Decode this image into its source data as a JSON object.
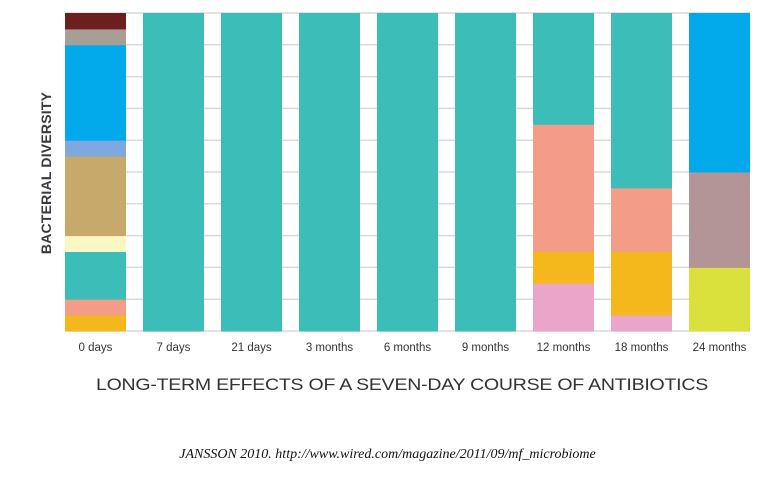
{
  "chart_data": {
    "type": "bar",
    "stacked": true,
    "title": "",
    "xlabel": "LONG-TERM EFFECTS OF A SEVEN-DAY COURSE OF ANTIBIOTICS",
    "ylabel": "BACTERIAL DIVERSITY",
    "ylim": [
      0,
      100
    ],
    "grid": true,
    "categories": [
      "0 days",
      "7 days",
      "21 days",
      "3 months",
      "6 months",
      "9 months",
      "12 months",
      "18 months",
      "24 months"
    ],
    "bars": [
      {
        "category": "0 days",
        "segments": [
          {
            "color": "#f4b81c",
            "value": 5
          },
          {
            "color": "#f39c88",
            "value": 5
          },
          {
            "color": "#3dbdb8",
            "value": 15
          },
          {
            "color": "#fbf7c4",
            "value": 5
          },
          {
            "color": "#c6a96b",
            "value": 25
          },
          {
            "color": "#7ea8e0",
            "value": 5
          },
          {
            "color": "#03aaeb",
            "value": 30
          },
          {
            "color": "#a89e95",
            "value": 5
          },
          {
            "color": "#6b1f1f",
            "value": 5
          }
        ]
      },
      {
        "category": "7 days",
        "segments": [
          {
            "color": "#3dbdb8",
            "value": 100
          }
        ]
      },
      {
        "category": "21 days",
        "segments": [
          {
            "color": "#3dbdb8",
            "value": 100
          }
        ]
      },
      {
        "category": "3 months",
        "segments": [
          {
            "color": "#3dbdb8",
            "value": 100
          }
        ]
      },
      {
        "category": "6 months",
        "segments": [
          {
            "color": "#3dbdb8",
            "value": 100
          }
        ]
      },
      {
        "category": "9 months",
        "segments": [
          {
            "color": "#3dbdb8",
            "value": 100
          }
        ]
      },
      {
        "category": "12 months",
        "segments": [
          {
            "color": "#eaa6c8",
            "value": 15
          },
          {
            "color": "#f4b81c",
            "value": 10
          },
          {
            "color": "#f39c88",
            "value": 40
          },
          {
            "color": "#3dbdb8",
            "value": 35
          }
        ]
      },
      {
        "category": "18 months",
        "segments": [
          {
            "color": "#eaa6c8",
            "value": 5
          },
          {
            "color": "#f4b81c",
            "value": 20
          },
          {
            "color": "#f39c88",
            "value": 20
          },
          {
            "color": "#3dbdb8",
            "value": 55
          }
        ]
      },
      {
        "category": "24 months",
        "segments": [
          {
            "color": "#dbe13c",
            "value": 20
          },
          {
            "color": "#b49597",
            "value": 30
          },
          {
            "color": "#03aaeb",
            "value": 50
          }
        ]
      }
    ]
  },
  "citation": "JANSSON 2010.  http://www.wired.com/magazine/2011/09/mf_microbiome"
}
